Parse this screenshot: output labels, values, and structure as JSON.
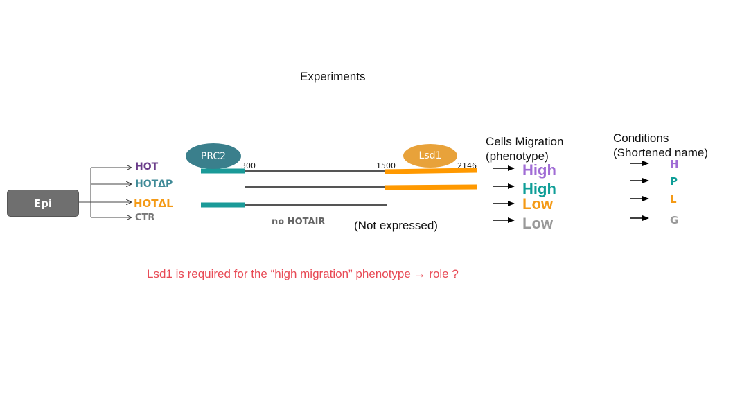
{
  "title": "Experiments",
  "source": {
    "label": "Epi"
  },
  "experiments": [
    {
      "label": "HOT",
      "color": "#6a3d8a"
    },
    {
      "label": "HOTΔP",
      "color": "#3f8a97"
    },
    {
      "label": "HOTΔL",
      "color": "#f49a16"
    },
    {
      "label": "CTR",
      "color": "#777777"
    }
  ],
  "proteins": {
    "prc2": "PRC2",
    "lsd1": "Lsd1"
  },
  "positions": {
    "p300": "300",
    "p1500": "1500",
    "p2146": "2146"
  },
  "domain_colors": {
    "prc2_domain": "#1a9a98",
    "lsd1_domain": "#ff9900",
    "body": "#555555"
  },
  "ctr_labels": {
    "no_hotair": "no HOTAIR",
    "not_expressed": "(Not expressed)"
  },
  "phenotype": {
    "header_line1": "Cells Migration",
    "header_line2": "(phenotype)",
    "values": [
      {
        "label": "High",
        "color": "#a06cd5"
      },
      {
        "label": "High",
        "color": "#0f9e97"
      },
      {
        "label": "Low",
        "color": "#f49a16"
      },
      {
        "label": "Low",
        "color": "#999999"
      }
    ]
  },
  "conditions": {
    "header_line1": "Conditions",
    "header_line2": "(Shortened name)",
    "values": [
      {
        "label": "H",
        "color": "#a06cd5"
      },
      {
        "label": "P",
        "color": "#0f9e97"
      },
      {
        "label": "L",
        "color": "#f49a16"
      },
      {
        "label": "G",
        "color": "#999999"
      }
    ]
  },
  "note": "Lsd1 is required for the “high migration” phenotype → role ?"
}
